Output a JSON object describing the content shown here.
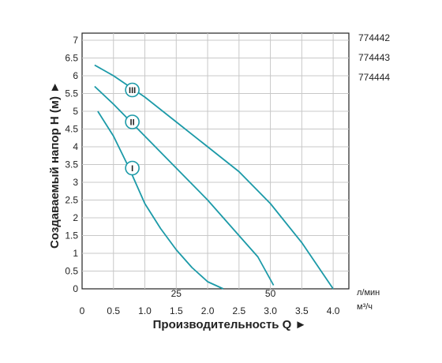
{
  "chart_data": {
    "type": "line",
    "title": "",
    "xlabel": "Производительность Q ►",
    "ylabel": "Создаваемый напор H (м) ►",
    "x_unit_primary": "м³/ч",
    "x_unit_secondary": "л/мин",
    "xlim": [
      0,
      4.25
    ],
    "ylim": [
      0,
      7.2
    ],
    "x_ticks": [
      0,
      0.5,
      1.0,
      1.5,
      2.0,
      2.5,
      3.0,
      3.5,
      4.0
    ],
    "x_tick_labels": [
      "0",
      "0.5",
      "1.0",
      "1.5",
      "2.0",
      "2.5",
      "3.0",
      "3.5",
      "4.0"
    ],
    "x_secondary_ticks": [
      {
        "x": 1.5,
        "label": "25"
      },
      {
        "x": 3.0,
        "label": "50"
      }
    ],
    "y_ticks": [
      0,
      0.5,
      1,
      1.5,
      2,
      2.5,
      3,
      3.5,
      4,
      4.5,
      5,
      5.5,
      6,
      6.5,
      7
    ],
    "y_tick_labels": [
      "0",
      "0.5",
      "1",
      "1.5",
      "2",
      "2.5",
      "3",
      "3.5",
      "4",
      "4.5",
      "5",
      "5.5",
      "6",
      "6.5",
      "7"
    ],
    "grid": true,
    "legend_placement": "right",
    "series": [
      {
        "name": "774442",
        "marker": "I",
        "marker_point": [
          0.8,
          3.4
        ],
        "color": "#1c9aa8",
        "x": [
          0.25,
          0.5,
          0.75,
          1.0,
          1.25,
          1.5,
          1.75,
          2.0,
          2.25
        ],
        "y": [
          5.0,
          4.3,
          3.4,
          2.4,
          1.7,
          1.1,
          0.6,
          0.2,
          0.0
        ]
      },
      {
        "name": "774443",
        "marker": "II",
        "marker_point": [
          0.8,
          4.7
        ],
        "color": "#1c9aa8",
        "x": [
          0.2,
          0.5,
          1.0,
          1.5,
          2.0,
          2.5,
          2.8,
          3.05
        ],
        "y": [
          5.7,
          5.2,
          4.3,
          3.4,
          2.5,
          1.5,
          0.9,
          0.1
        ]
      },
      {
        "name": "774444",
        "marker": "III",
        "marker_point": [
          0.8,
          5.6
        ],
        "color": "#1c9aa8",
        "x": [
          0.2,
          0.5,
          1.0,
          1.5,
          2.0,
          2.5,
          3.0,
          3.5,
          4.0
        ],
        "y": [
          6.3,
          6.0,
          5.4,
          4.7,
          4.0,
          3.3,
          2.4,
          1.3,
          0.0
        ]
      }
    ]
  }
}
